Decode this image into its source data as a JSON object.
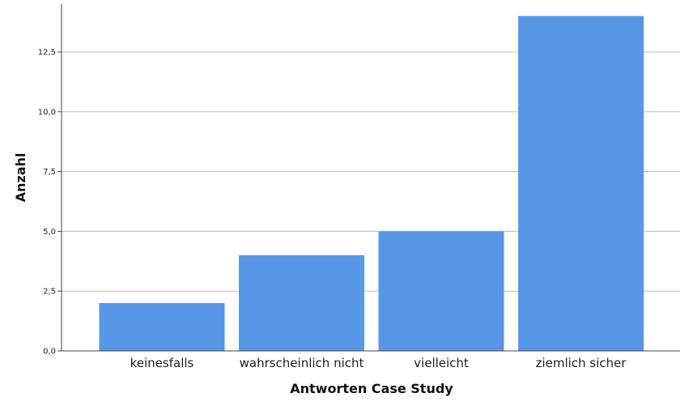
{
  "chart_data": {
    "type": "bar",
    "title": "",
    "xlabel": "Antworten Case Study",
    "ylabel": "Anzahl",
    "categories": [
      "keinesfalls",
      "wahrscheinlich nicht",
      "vielleicht",
      "ziemlich sicher"
    ],
    "values": [
      2,
      4,
      5,
      14
    ],
    "ylim": [
      0,
      14.5
    ],
    "yticks": [
      0,
      2.5,
      5,
      7.5,
      10,
      12.5
    ],
    "ytick_labels": [
      "0,0",
      "2,5",
      "5,0",
      "7,5",
      "10,0",
      "12,5"
    ],
    "grid": true,
    "legend": "none",
    "colors": {
      "bar": "#5897e5",
      "grid": "#bdbdbd",
      "axis": "#444444"
    }
  }
}
